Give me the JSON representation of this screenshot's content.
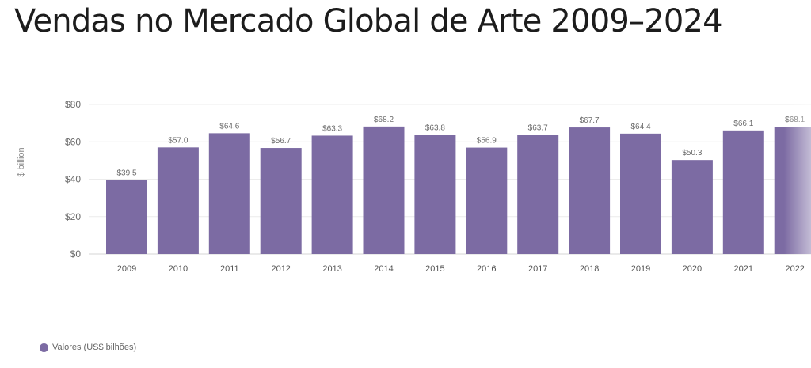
{
  "title": "Vendas no Mercado Global de Arte 2009–2024",
  "chart_data": {
    "type": "bar",
    "title": "Vendas no Mercado Global de Arte 2009–2024",
    "ylabel": "$ billion",
    "xlabel": "",
    "ylim": [
      0,
      80
    ],
    "yticks": [
      0,
      20,
      40,
      60,
      80
    ],
    "ytick_labels": [
      "$0",
      "$20",
      "$40",
      "$60",
      "$80"
    ],
    "grid": true,
    "categories": [
      "2009",
      "2010",
      "2011",
      "2012",
      "2013",
      "2014",
      "2015",
      "2016",
      "2017",
      "2018",
      "2019",
      "2020",
      "2021",
      "2022"
    ],
    "series": [
      {
        "name": "Valores (US$ bilhões)",
        "values": [
          39.5,
          57.0,
          64.6,
          56.7,
          63.3,
          68.2,
          63.8,
          56.9,
          63.7,
          67.7,
          64.4,
          50.3,
          66.1,
          68.1
        ],
        "value_labels": [
          "$39.5",
          "$57.0",
          "$64.6",
          "$56.7",
          "$63.3",
          "$68.2",
          "$63.8",
          "$56.9",
          "$63.7",
          "$67.7",
          "$64.4",
          "$50.3",
          "$66.1",
          "$68.1"
        ],
        "color": "#7c6ba3"
      }
    ],
    "legend": {
      "position": "bottom-left"
    }
  },
  "legend": {
    "label": "Valores (US$ bilhões)",
    "color": "#7c6ba3"
  }
}
